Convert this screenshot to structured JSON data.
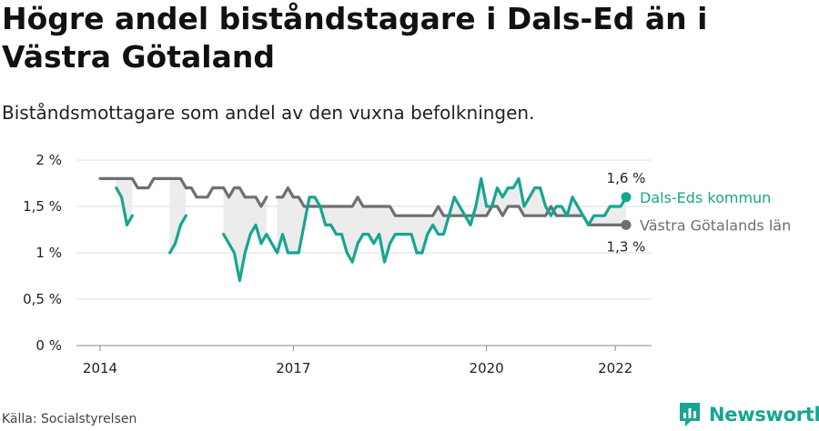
{
  "title": "Högre andel biståndstagare i Dals-Ed än i Västra Götaland",
  "subtitle": "Biståndsmottagare som andel av den vuxna befolkningen.",
  "source": "Källa: Socialstyrelsen",
  "brand": "Newsworthy",
  "colors": {
    "dals_ed": "#17a592",
    "vg": "#6e6e73",
    "fill": "#ececec",
    "grid": "#dddddd"
  },
  "chart_data": {
    "type": "line",
    "y_ticks": [
      "0 %",
      "0,5 %",
      "1 %",
      "1,5 %",
      "2 %"
    ],
    "x_ticks": [
      "2014",
      "2017",
      "2020",
      "2022"
    ],
    "ylim": [
      0,
      2
    ],
    "end_labels": {
      "dals_ed": "1,6 %",
      "vg": "1,3 %"
    },
    "series": [
      {
        "name": "Dals-Eds kommun",
        "key": "dals_ed",
        "values": [
          null,
          null,
          null,
          1.7,
          1.6,
          1.3,
          1.4,
          null,
          null,
          null,
          null,
          null,
          null,
          1.0,
          1.1,
          1.3,
          1.4,
          null,
          null,
          null,
          null,
          null,
          null,
          1.2,
          1.1,
          1.0,
          0.7,
          1.0,
          1.2,
          1.3,
          1.1,
          1.2,
          1.1,
          1.0,
          1.2,
          1.0,
          1.0,
          1.0,
          1.3,
          1.6,
          1.6,
          1.5,
          1.3,
          1.3,
          1.2,
          1.2,
          1.0,
          0.9,
          1.1,
          1.2,
          1.2,
          1.1,
          1.2,
          0.9,
          1.1,
          1.2,
          1.2,
          1.2,
          1.2,
          1.0,
          1.0,
          1.2,
          1.3,
          1.2,
          1.2,
          1.4,
          1.6,
          1.5,
          1.4,
          1.3,
          1.5,
          1.8,
          1.5,
          1.5,
          1.7,
          1.6,
          1.7,
          1.7,
          1.8,
          1.5,
          1.6,
          1.7,
          1.7,
          1.5,
          1.4,
          1.5,
          1.5,
          1.4,
          1.6,
          1.5,
          1.4,
          1.3,
          1.4,
          1.4,
          1.4,
          1.5,
          1.5,
          1.5,
          1.6
        ]
      },
      {
        "name": "Västra Götalands län",
        "key": "vg",
        "values": [
          1.8,
          1.8,
          1.8,
          1.8,
          1.8,
          1.8,
          1.8,
          1.7,
          1.7,
          1.7,
          1.8,
          1.8,
          1.8,
          1.8,
          1.8,
          1.8,
          1.7,
          1.7,
          1.6,
          1.6,
          1.6,
          1.7,
          1.7,
          1.7,
          1.6,
          1.7,
          1.7,
          1.6,
          1.6,
          1.6,
          1.5,
          1.6,
          null,
          1.6,
          1.6,
          1.7,
          1.6,
          1.6,
          1.5,
          1.5,
          1.5,
          1.5,
          1.5,
          1.5,
          1.5,
          1.5,
          1.5,
          1.5,
          1.6,
          1.5,
          1.5,
          1.5,
          1.5,
          1.5,
          1.5,
          1.4,
          1.4,
          1.4,
          1.4,
          1.4,
          1.4,
          1.4,
          1.4,
          1.5,
          1.4,
          1.4,
          1.4,
          1.4,
          1.4,
          1.4,
          1.4,
          1.4,
          1.4,
          1.5,
          1.5,
          1.4,
          1.5,
          1.5,
          1.5,
          1.4,
          1.4,
          1.4,
          1.4,
          1.4,
          1.5,
          1.4,
          1.4,
          1.4,
          1.4,
          1.4,
          1.4,
          1.3,
          1.3,
          1.3,
          1.3,
          1.3,
          1.3,
          1.3,
          1.3
        ]
      }
    ]
  }
}
